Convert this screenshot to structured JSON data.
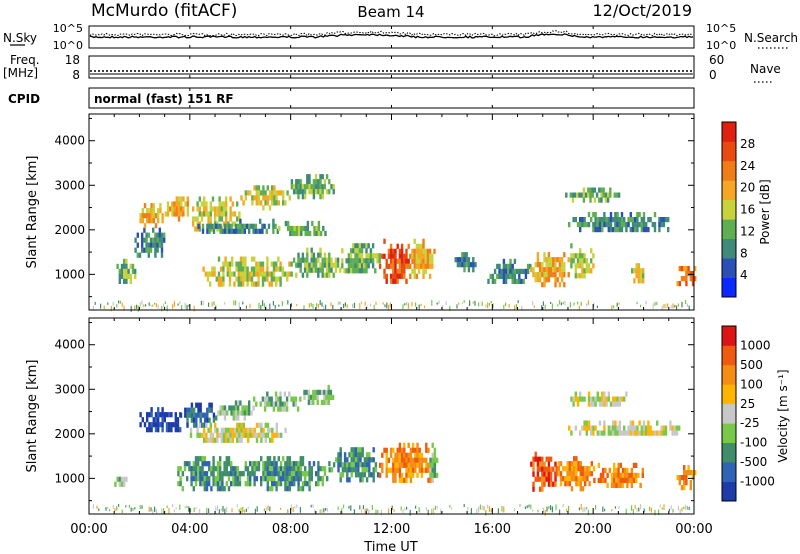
{
  "header": {
    "site": "McMurdo (fitACF)",
    "beam": "Beam 14",
    "date": "12/Oct/2019"
  },
  "top_panels": {
    "nsky_label": "N.Sky",
    "nsearch_label": "N.Search",
    "nsky_ticks": [
      "10^5",
      "10^0"
    ],
    "nsearch_ticks": [
      "10^5",
      "10^0"
    ],
    "freq_label": "Freq.",
    "freq_unit": "[MHz]",
    "freq_ticks": [
      "18",
      "8"
    ],
    "nave_label": "Nave",
    "nave_ticks": [
      "60",
      "0"
    ],
    "cpid_label": "CPID",
    "cpid_text": "normal (fast) 151 RF"
  },
  "x_ticks": [
    "00:00",
    "04:00",
    "08:00",
    "12:00",
    "16:00",
    "20:00",
    "00:00"
  ],
  "x_label": "Time UT",
  "colors": {
    "power_scale": [
      "#0a28ff",
      "#2a50b8",
      "#3f8a78",
      "#5fae52",
      "#c8d23c",
      "#f5a623",
      "#f07d18",
      "#e84a10",
      "#e02010"
    ],
    "velocity_scale": [
      "#1e3ca8",
      "#2f63b5",
      "#3f8d6a",
      "#78c84a",
      "#c8c8c8",
      "#ffb400",
      "#f58c14",
      "#f05a0f",
      "#dc1414"
    ]
  },
  "chart_data": [
    {
      "type": "heatmap",
      "quantity": "Power",
      "xlabel": "Time UT",
      "ylabel": "Slant Range [km]",
      "ylim": [
        200,
        4600
      ],
      "y_ticks": [
        1000,
        2000,
        3000,
        4000
      ],
      "colorbar_label": "Power [dB]",
      "colorbar_ticks": [
        4,
        8,
        12,
        16,
        20,
        24,
        28
      ],
      "colorbar_range": [
        0,
        32
      ],
      "patches": [
        {
          "t": [
            1.0,
            1.8
          ],
          "r": [
            850,
            1350
          ],
          "level": 3
        },
        {
          "t": [
            1.8,
            3.0
          ],
          "r": [
            1450,
            2050
          ],
          "level": 2
        },
        {
          "t": [
            2.0,
            3.0
          ],
          "r": [
            2150,
            2600
          ],
          "level": 5
        },
        {
          "t": [
            3.0,
            4.0
          ],
          "r": [
            2250,
            2750
          ],
          "level": 5
        },
        {
          "t": [
            4.0,
            6.0
          ],
          "r": [
            2050,
            2750
          ],
          "level": 4
        },
        {
          "t": [
            6.0,
            8.0
          ],
          "r": [
            2550,
            3000
          ],
          "level": 4
        },
        {
          "t": [
            8.0,
            9.7
          ],
          "r": [
            2800,
            3250
          ],
          "level": 3
        },
        {
          "t": [
            4.3,
            7.5
          ],
          "r": [
            1950,
            2250
          ],
          "level": 2
        },
        {
          "t": [
            7.5,
            9.5
          ],
          "r": [
            1900,
            2200
          ],
          "level": 3
        },
        {
          "t": [
            4.5,
            8.0
          ],
          "r": [
            800,
            1400
          ],
          "level": 4
        },
        {
          "t": [
            8.0,
            10.0
          ],
          "r": [
            1000,
            1600
          ],
          "level": 3
        },
        {
          "t": [
            10.0,
            11.5
          ],
          "r": [
            1050,
            1700
          ],
          "level": 3
        },
        {
          "t": [
            11.5,
            12.7
          ],
          "r": [
            900,
            1800
          ],
          "level": 7
        },
        {
          "t": [
            12.7,
            13.7
          ],
          "r": [
            950,
            1800
          ],
          "level": 5
        },
        {
          "t": [
            14.5,
            15.3
          ],
          "r": [
            1100,
            1500
          ],
          "level": 2
        },
        {
          "t": [
            15.8,
            17.5
          ],
          "r": [
            800,
            1350
          ],
          "level": 2
        },
        {
          "t": [
            17.5,
            19.0
          ],
          "r": [
            750,
            1500
          ],
          "level": 5
        },
        {
          "t": [
            19.0,
            20.0
          ],
          "r": [
            1000,
            1700
          ],
          "level": 4
        },
        {
          "t": [
            18.8,
            21.0
          ],
          "r": [
            2700,
            2950
          ],
          "level": 3
        },
        {
          "t": [
            19.0,
            23.0
          ],
          "r": [
            2000,
            2400
          ],
          "level": 2
        },
        {
          "t": [
            21.5,
            22.0
          ],
          "r": [
            850,
            1250
          ],
          "level": 4
        },
        {
          "t": [
            23.3,
            24.0
          ],
          "r": [
            800,
            1300
          ],
          "level": 6
        }
      ]
    },
    {
      "type": "heatmap",
      "quantity": "Velocity",
      "xlabel": "Time UT",
      "ylabel": "Slant Range [km]",
      "ylim": [
        200,
        4600
      ],
      "y_ticks": [
        1000,
        2000,
        3000,
        4000
      ],
      "colorbar_label": "Velocity [m s⁻¹]",
      "colorbar_ticks": [
        "1000",
        "500",
        "100",
        "25",
        "-25",
        "-100",
        "-500",
        "-1000"
      ],
      "patches": [
        {
          "t": [
            2.0,
            3.6
          ],
          "r": [
            2050,
            2600
          ],
          "level": 0
        },
        {
          "t": [
            3.6,
            5.0
          ],
          "r": [
            2200,
            2700
          ],
          "level": 1
        },
        {
          "t": [
            5.0,
            6.5
          ],
          "r": [
            2350,
            2750
          ],
          "level": 3
        },
        {
          "t": [
            6.5,
            8.5
          ],
          "r": [
            2550,
            2950
          ],
          "level": 3
        },
        {
          "t": [
            8.5,
            9.7
          ],
          "r": [
            2750,
            3100
          ],
          "level": 3
        },
        {
          "t": [
            4.0,
            8.0
          ],
          "r": [
            1900,
            2250
          ],
          "level": 4
        },
        {
          "t": [
            3.5,
            6.0
          ],
          "r": [
            800,
            1500
          ],
          "level": 2
        },
        {
          "t": [
            6.0,
            9.5
          ],
          "r": [
            800,
            1500
          ],
          "level": 2
        },
        {
          "t": [
            9.5,
            11.5
          ],
          "r": [
            1000,
            1700
          ],
          "level": 2
        },
        {
          "t": [
            11.5,
            13.7
          ],
          "r": [
            1000,
            1800
          ],
          "level": 6
        },
        {
          "t": [
            13.5,
            13.8
          ],
          "r": [
            1000,
            1800
          ],
          "level": 3
        },
        {
          "t": [
            17.5,
            18.5
          ],
          "r": [
            800,
            1600
          ],
          "level": 7
        },
        {
          "t": [
            18.5,
            20.0
          ],
          "r": [
            800,
            1500
          ],
          "level": 6
        },
        {
          "t": [
            20.0,
            22.0
          ],
          "r": [
            800,
            1350
          ],
          "level": 6
        },
        {
          "t": [
            19.0,
            21.5
          ],
          "r": [
            2700,
            2950
          ],
          "level": 4
        },
        {
          "t": [
            19.0,
            23.5
          ],
          "r": [
            2000,
            2300
          ],
          "level": 4
        },
        {
          "t": [
            23.3,
            24.0
          ],
          "r": [
            800,
            1300
          ],
          "level": 6
        },
        {
          "t": [
            1.0,
            1.5
          ],
          "r": [
            850,
            1150
          ],
          "level": 3
        }
      ]
    }
  ]
}
